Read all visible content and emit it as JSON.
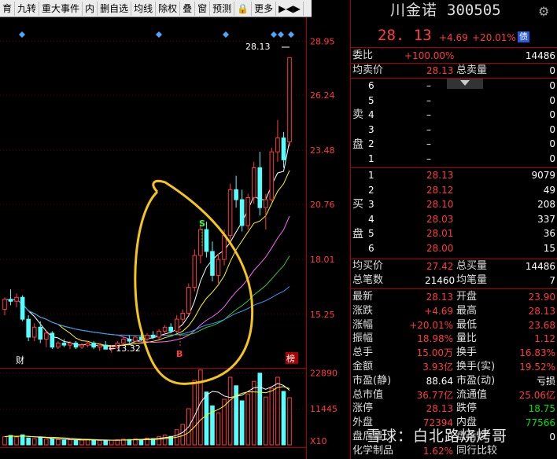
{
  "toolbar": {
    "items": [
      "育",
      "九转",
      "重大事件",
      "内",
      "删自选",
      "均线",
      "除权",
      "叠",
      "窗",
      "预测",
      "🔒",
      "更多",
      "▶◀▶"
    ]
  },
  "stock": {
    "name": "川金诺",
    "code": "300505",
    "price": "28. 13",
    "change": "+4.69",
    "pct": "+20.01%",
    "badge": "债"
  },
  "weibi": {
    "label": "委比",
    "value": "+100.00%",
    "right": "14486"
  },
  "junmai": {
    "label1": "均卖价",
    "value1": "28.13",
    "label2": "总卖量",
    "value2": "0"
  },
  "sell": {
    "side": "卖盘",
    "levels": [
      {
        "n": "6",
        "p": "–",
        "v": "0"
      },
      {
        "n": "5",
        "p": "–",
        "v": "0"
      },
      {
        "n": "4",
        "p": "–",
        "v": "0"
      },
      {
        "n": "3",
        "p": "–",
        "v": "0"
      },
      {
        "n": "2",
        "p": "–",
        "v": "0"
      },
      {
        "n": "1",
        "p": "–",
        "v": "0"
      }
    ]
  },
  "buy": {
    "side": "买盘",
    "levels": [
      {
        "n": "1",
        "p": "28.13",
        "v": "9079"
      },
      {
        "n": "2",
        "p": "28.12",
        "v": "49"
      },
      {
        "n": "3",
        "p": "28.10",
        "v": "208"
      },
      {
        "n": "4",
        "p": "28.03",
        "v": "337"
      },
      {
        "n": "5",
        "p": "28.01",
        "v": "36"
      },
      {
        "n": "6",
        "p": "28.00",
        "v": "15"
      }
    ]
  },
  "junbuy": {
    "label1": "均买价",
    "value1": "27.42",
    "label2": "总买量",
    "value2": "14486"
  },
  "zongbi": {
    "label1": "总笔数",
    "value1": "21460",
    "label2": "均笔量",
    "value2": "7"
  },
  "stats": [
    {
      "l1": "最新",
      "v1": "28.13",
      "l2": "开盘",
      "v2": "23.90",
      "c1": "red",
      "c2": "red"
    },
    {
      "l1": "涨跌",
      "v1": "+4.69",
      "l2": "最高",
      "v2": "28.13",
      "c1": "red",
      "c2": "red"
    },
    {
      "l1": "涨幅",
      "v1": "+20.01%",
      "l2": "最低",
      "v2": "23.68",
      "c1": "red",
      "c2": "red"
    },
    {
      "l1": "振幅",
      "v1": "18.98%",
      "l2": "量比",
      "v2": "1.12",
      "c1": "red",
      "c2": "red"
    },
    {
      "l1": "总手",
      "v1": "15.00万",
      "l2": "换手",
      "v2": "16.83%",
      "c1": "red",
      "c2": "red"
    },
    {
      "l1": "金额",
      "v1": "3.93亿",
      "l2": "换手(实)",
      "v2": "19.52%",
      "c1": "red",
      "c2": "red"
    },
    {
      "l1": "市盈(静)",
      "v1": "88.64",
      "l2": "市盈(动)",
      "v2": "亏损",
      "c1": "wht",
      "c2": "wht"
    },
    {
      "l1": "总市值",
      "v1": "36.77亿",
      "l2": "流通值",
      "v2": "25.06亿",
      "c1": "red",
      "c2": "red"
    },
    {
      "l1": "涨停",
      "v1": "28.13",
      "l2": "跌停",
      "v2": "18.75",
      "c1": "red",
      "c2": "grn"
    },
    {
      "l1": "外盘",
      "v1": "72394",
      "l2": "内盘",
      "v2": "77566",
      "c1": "red",
      "c2": "grn"
    },
    {
      "l1": "盘后量",
      "v1": "0",
      "l2": "盘后额",
      "v2": "0",
      "c1": "wht",
      "c2": "wht"
    },
    {
      "l1": "化学制品",
      "v1": "1.62%",
      "l2": "同行比较",
      "v2": "",
      "c1": "red",
      "c2": "wht"
    }
  ],
  "chart": {
    "price_ticks": [
      "28.95",
      "26.24",
      "23.48",
      "20.76",
      "18.01",
      "15.25"
    ],
    "vol_ticks": [
      "22890",
      "11445"
    ],
    "vol_unit": "X10",
    "high_label": "28.13",
    "low_label": "←13.32",
    "mark_s": "S",
    "mark_b": "B",
    "mark_cai": "财",
    "mark_bang": "榜"
  },
  "watermark": "雪球：白北路烧烤哥",
  "chart_data": {
    "type": "candlestick",
    "y_ticks": [
      28.95,
      26.24,
      23.48,
      20.76,
      18.01,
      15.25
    ],
    "ylim": [
      12.6,
      29.6
    ],
    "candles": [
      [
        15.5,
        16.1,
        15.2,
        16.0
      ],
      [
        16.0,
        16.5,
        15.7,
        15.9
      ],
      [
        15.9,
        16.3,
        15.6,
        16.1
      ],
      [
        16.1,
        16.2,
        14.9,
        15.0
      ],
      [
        15.0,
        15.2,
        13.9,
        14.1
      ],
      [
        14.1,
        14.8,
        13.9,
        14.6
      ],
      [
        14.6,
        14.9,
        13.8,
        14.0
      ],
      [
        14.0,
        14.4,
        13.6,
        14.3
      ],
      [
        14.3,
        14.4,
        13.5,
        13.6
      ],
      [
        13.6,
        13.9,
        13.5,
        13.8
      ],
      [
        13.8,
        14.0,
        13.6,
        13.7
      ],
      [
        13.7,
        13.9,
        13.5,
        13.8
      ],
      [
        13.8,
        13.9,
        13.5,
        13.6
      ],
      [
        13.6,
        13.8,
        13.5,
        13.7
      ],
      [
        13.7,
        13.9,
        13.6,
        13.8
      ],
      [
        13.8,
        13.9,
        13.5,
        13.6
      ],
      [
        13.6,
        13.8,
        13.4,
        13.7
      ],
      [
        13.7,
        13.9,
        13.5,
        13.5
      ],
      [
        13.5,
        13.7,
        13.32,
        13.6
      ],
      [
        13.6,
        13.9,
        13.5,
        13.8
      ],
      [
        13.8,
        14.1,
        13.7,
        14.0
      ],
      [
        14.0,
        14.2,
        13.8,
        13.9
      ],
      [
        13.9,
        14.2,
        13.8,
        14.1
      ],
      [
        14.1,
        14.3,
        13.9,
        14.0
      ],
      [
        14.0,
        14.3,
        13.9,
        14.2
      ],
      [
        14.2,
        14.4,
        14.0,
        14.1
      ],
      [
        14.1,
        14.5,
        14.0,
        14.4
      ],
      [
        14.4,
        14.7,
        14.2,
        14.6
      ],
      [
        14.6,
        14.8,
        14.3,
        14.4
      ],
      [
        14.4,
        15.2,
        14.3,
        15.0
      ],
      [
        15.0,
        15.5,
        14.8,
        15.3
      ],
      [
        15.3,
        16.8,
        15.2,
        16.6
      ],
      [
        16.6,
        18.5,
        16.4,
        18.2
      ],
      [
        18.2,
        19.8,
        17.8,
        19.5
      ],
      [
        19.5,
        19.9,
        18.1,
        18.4
      ],
      [
        18.4,
        18.9,
        16.9,
        17.2
      ],
      [
        17.2,
        18.3,
        16.8,
        18.0
      ],
      [
        18.0,
        19.5,
        17.7,
        19.2
      ],
      [
        19.2,
        21.8,
        19.0,
        21.5
      ],
      [
        21.5,
        22.2,
        20.6,
        21.0
      ],
      [
        21.0,
        21.5,
        19.4,
        19.7
      ],
      [
        19.7,
        21.3,
        19.5,
        21.1
      ],
      [
        21.1,
        22.9,
        20.8,
        22.6
      ],
      [
        22.6,
        23.4,
        20.2,
        20.6
      ],
      [
        20.6,
        21.3,
        19.5,
        21.0
      ],
      [
        21.0,
        23.6,
        20.9,
        23.4
      ],
      [
        23.4,
        25.0,
        22.9,
        24.1
      ],
      [
        24.1,
        24.4,
        22.6,
        23.0
      ],
      [
        23.9,
        28.13,
        23.68,
        28.13
      ]
    ],
    "volume": {
      "ylim": [
        0,
        24000
      ],
      "ticks": [
        22890,
        11445
      ],
      "values": [
        2600,
        3000,
        2500,
        3200,
        2200,
        2000,
        2300,
        1800,
        2000,
        1700,
        1500,
        1600,
        1400,
        1500,
        1700,
        1500,
        1400,
        1300,
        1500,
        1600,
        1800,
        1700,
        1900,
        1700,
        2100,
        2000,
        2600,
        3100,
        2700,
        4800,
        6500,
        11500,
        20500,
        23800,
        16800,
        12400,
        10200,
        14500,
        21500,
        18800,
        14000,
        16200,
        20200,
        22800,
        15200,
        18000,
        21500,
        17000,
        15000
      ]
    }
  }
}
